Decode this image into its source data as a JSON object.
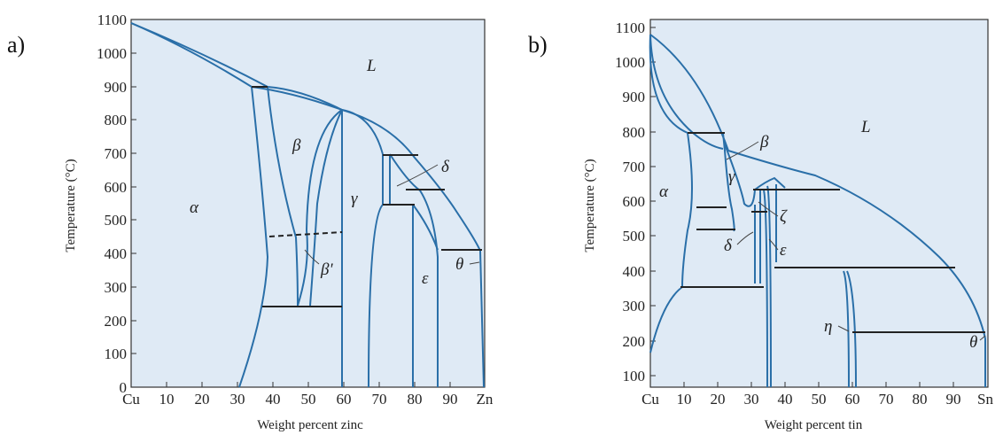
{
  "panels": [
    {
      "id": "a",
      "label": "a)",
      "xlabel": "Weight percent zinc",
      "ylabel": "Temperature (°C)",
      "x_ticks": [
        "Cu",
        "10",
        "20",
        "30",
        "40",
        "50",
        "60",
        "70",
        "80",
        "90",
        "Zn"
      ],
      "y_ticks": [
        "0",
        "100",
        "200",
        "300",
        "400",
        "500",
        "600",
        "700",
        "800",
        "900",
        "1000",
        "1100"
      ],
      "phases": [
        "L",
        "α",
        "β",
        "γ",
        "δ",
        "β'",
        "ε",
        "θ"
      ]
    },
    {
      "id": "b",
      "label": "b)",
      "xlabel": "Weight percent tin",
      "ylabel": "Temperature (°C)",
      "x_ticks": [
        "Cu",
        "10",
        "20",
        "30",
        "40",
        "50",
        "60",
        "70",
        "80",
        "90",
        "Sn"
      ],
      "y_ticks": [
        "100",
        "200",
        "300",
        "400",
        "500",
        "600",
        "700",
        "800",
        "900",
        "1000",
        "1100"
      ],
      "phases": [
        "L",
        "α",
        "β",
        "γ",
        "ζ",
        "δ",
        "ε",
        "η",
        "θ"
      ]
    }
  ],
  "colors": {
    "boundary": "#2a6fa8",
    "isotherm": "#222222",
    "background": "#dfeaf5"
  }
}
